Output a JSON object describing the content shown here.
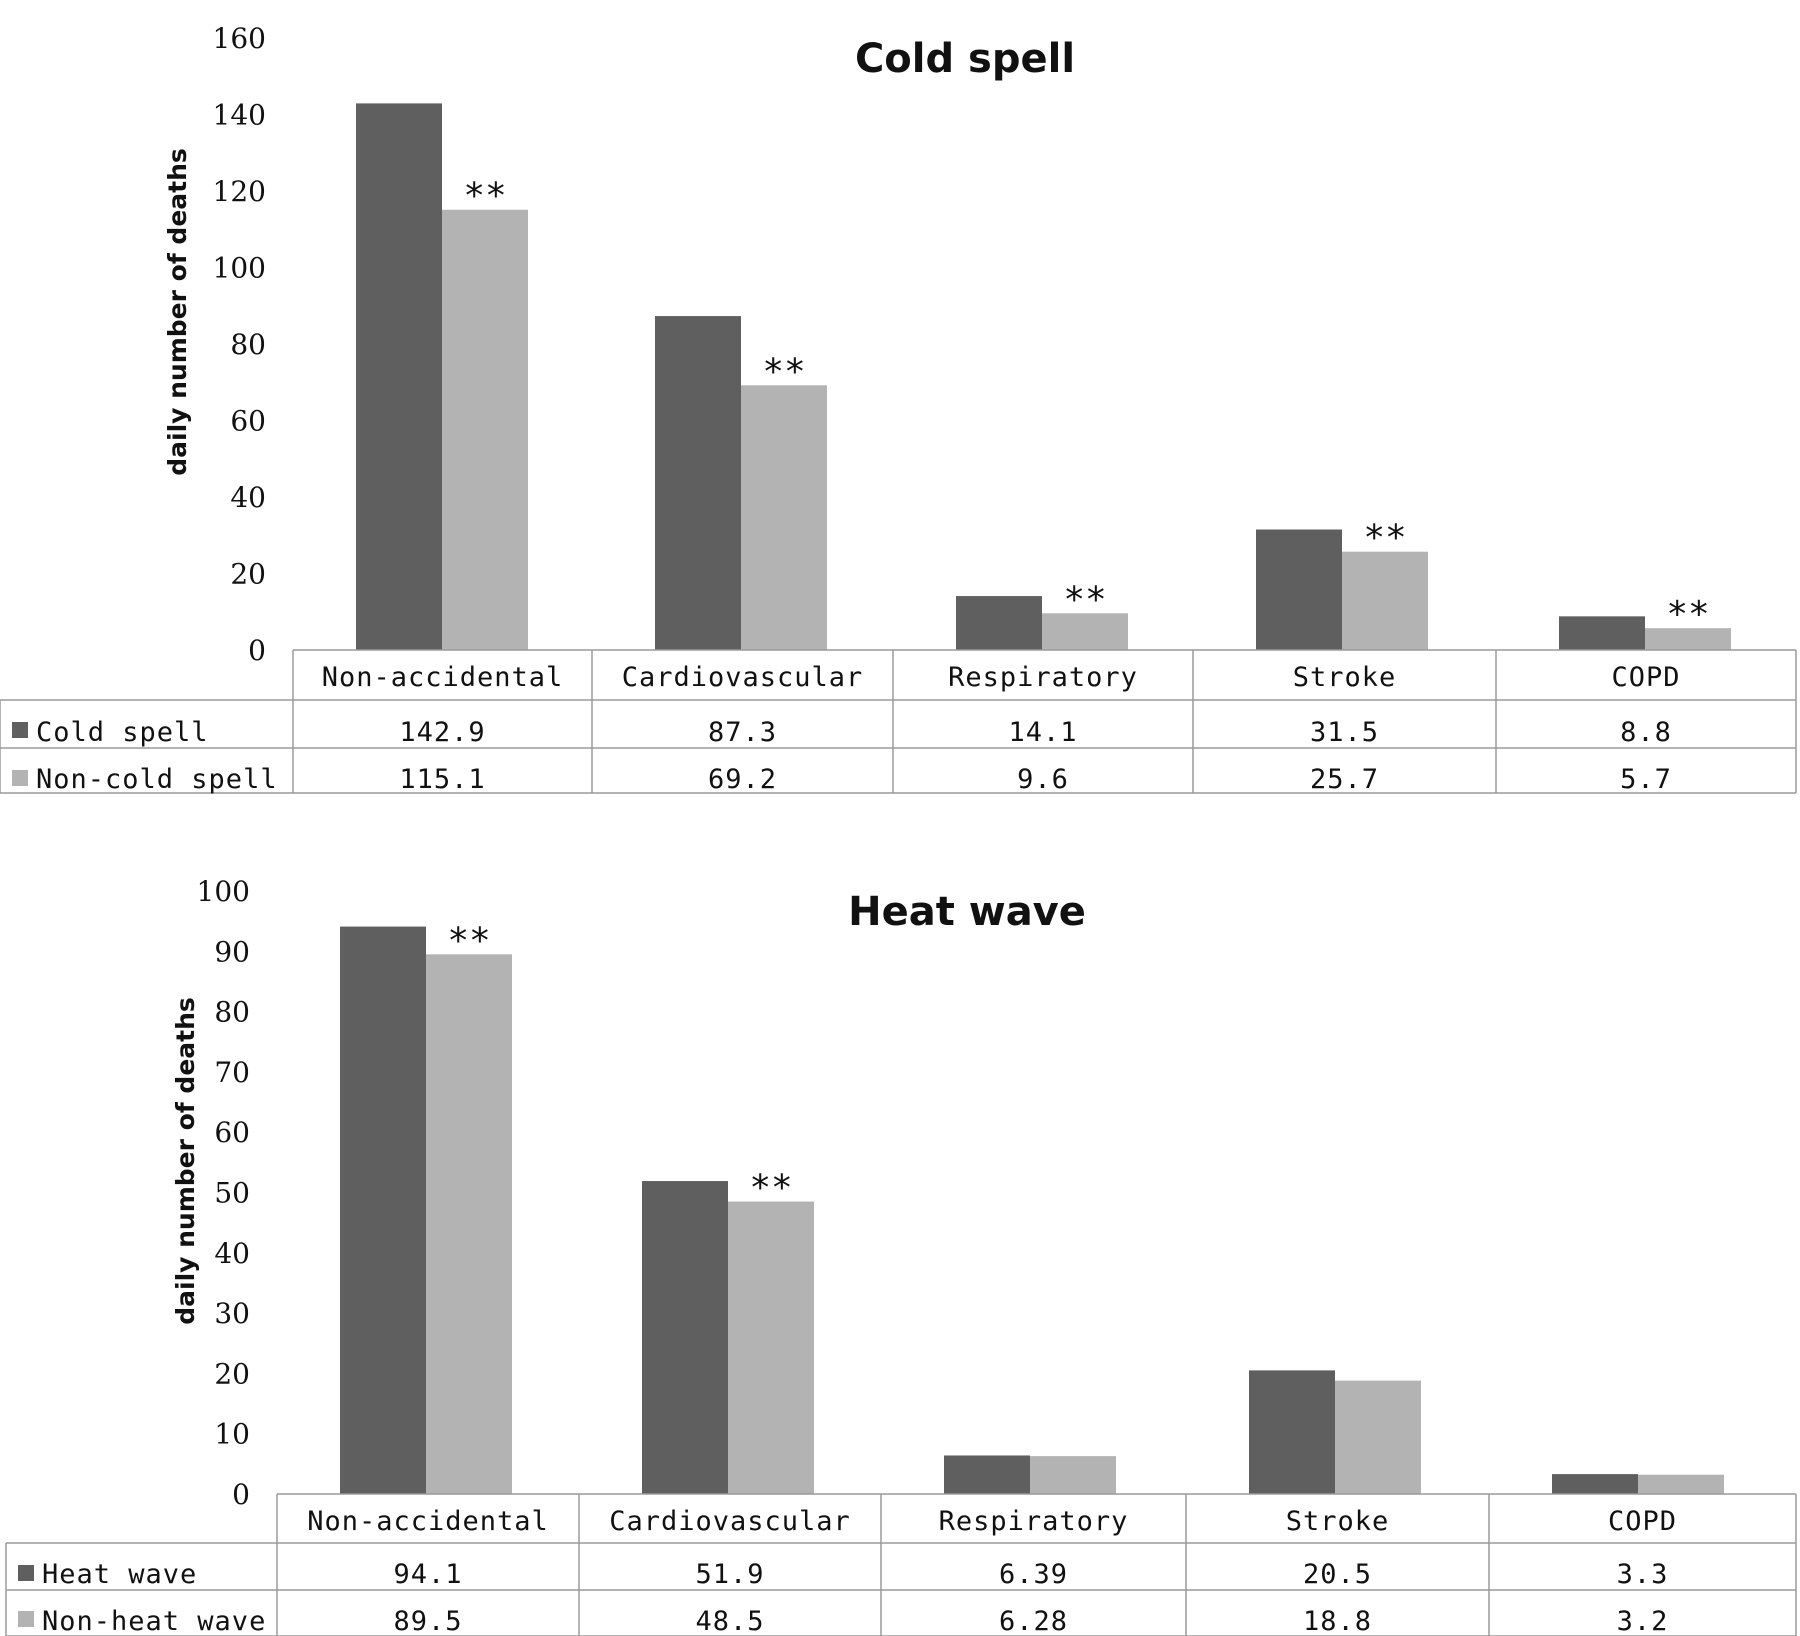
{
  "chart_data": [
    {
      "type": "bar",
      "title": "Cold spell",
      "ylabel": "daily number of deaths",
      "xlabel": "",
      "ylim": [
        0,
        160
      ],
      "yticks": [
        0,
        20,
        40,
        60,
        80,
        100,
        120,
        140,
        160
      ],
      "categories": [
        "Non-accidental",
        "Cardiovascular",
        "Respiratory",
        "Stroke",
        "COPD"
      ],
      "series": [
        {
          "name": "Cold spell",
          "color": "#5f5f5f",
          "values": [
            142.9,
            87.3,
            14.1,
            31.5,
            8.8
          ],
          "labels": [
            "142.9",
            "87.3",
            "14.1",
            "31.5",
            "8.8"
          ]
        },
        {
          "name": "Non-cold spell",
          "color": "#b3b3b3",
          "values": [
            115.1,
            69.2,
            9.6,
            25.7,
            5.7
          ],
          "labels": [
            "115.1",
            "69.2",
            "9.6",
            "25.7",
            "5.7"
          ]
        }
      ],
      "annotations": [
        "**",
        "**",
        "**",
        "**",
        "**"
      ],
      "grid": false,
      "legend": "data table"
    },
    {
      "type": "bar",
      "title": "Heat wave",
      "ylabel": "daily number of deaths",
      "xlabel": "",
      "ylim": [
        0,
        100
      ],
      "yticks": [
        0,
        10,
        20,
        30,
        40,
        50,
        60,
        70,
        80,
        90,
        100
      ],
      "categories": [
        "Non-accidental",
        "Cardiovascular",
        "Respiratory",
        "Stroke",
        "COPD"
      ],
      "series": [
        {
          "name": "Heat wave",
          "color": "#5f5f5f",
          "values": [
            94.1,
            51.9,
            6.39,
            20.5,
            3.3
          ],
          "labels": [
            "94.1",
            "51.9",
            "6.39",
            "20.5",
            "3.3"
          ]
        },
        {
          "name": "Non-heat wave",
          "color": "#b3b3b3",
          "values": [
            89.5,
            48.5,
            6.28,
            18.8,
            3.2
          ],
          "labels": [
            "89.5",
            "48.5",
            "6.28",
            "18.8",
            "3.2"
          ]
        }
      ],
      "annotations": [
        "**",
        "**",
        "",
        "",
        ""
      ],
      "grid": false,
      "legend": "data table"
    }
  ]
}
